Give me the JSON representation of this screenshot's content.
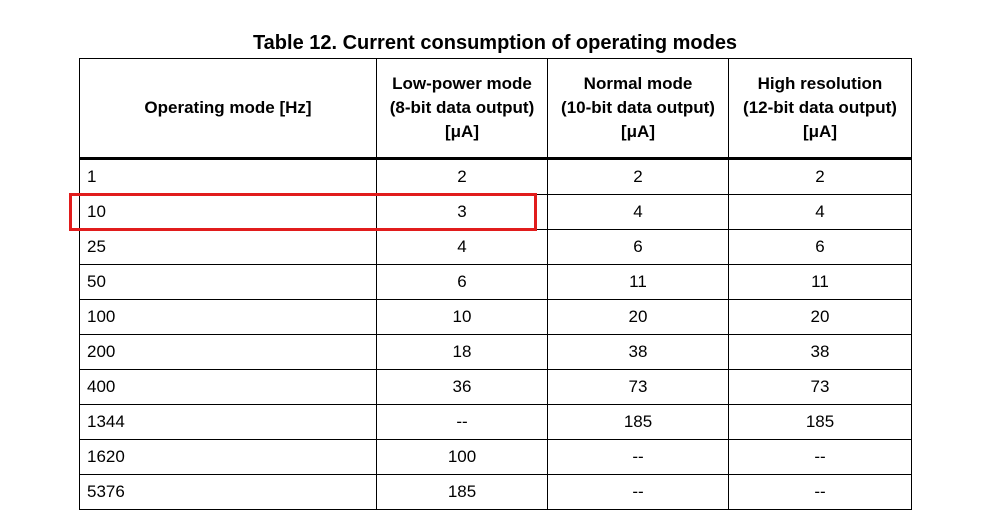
{
  "title": "Table 12. Current consumption of operating modes",
  "columns": [
    {
      "lines": [
        "Operating mode [Hz]"
      ]
    },
    {
      "lines": [
        "Low-power mode",
        "(8-bit data output)",
        "[μA]"
      ]
    },
    {
      "lines": [
        "Normal mode",
        "(10-bit data output)",
        "[μA]"
      ]
    },
    {
      "lines": [
        "High resolution",
        "(12-bit data output)",
        "[μA]"
      ]
    }
  ],
  "rows": [
    [
      "1",
      "2",
      "2",
      "2"
    ],
    [
      "10",
      "3",
      "4",
      "4"
    ],
    [
      "25",
      "4",
      "6",
      "6"
    ],
    [
      "50",
      "6",
      "11",
      "11"
    ],
    [
      "100",
      "10",
      "20",
      "20"
    ],
    [
      "200",
      "18",
      "38",
      "38"
    ],
    [
      "400",
      "36",
      "73",
      "73"
    ],
    [
      "1344",
      "--",
      "185",
      "185"
    ],
    [
      "1620",
      "100",
      "--",
      "--"
    ],
    [
      "5376",
      "185",
      "--",
      "--"
    ]
  ],
  "highlight": {
    "row": 1,
    "color": "#e11c1c"
  }
}
